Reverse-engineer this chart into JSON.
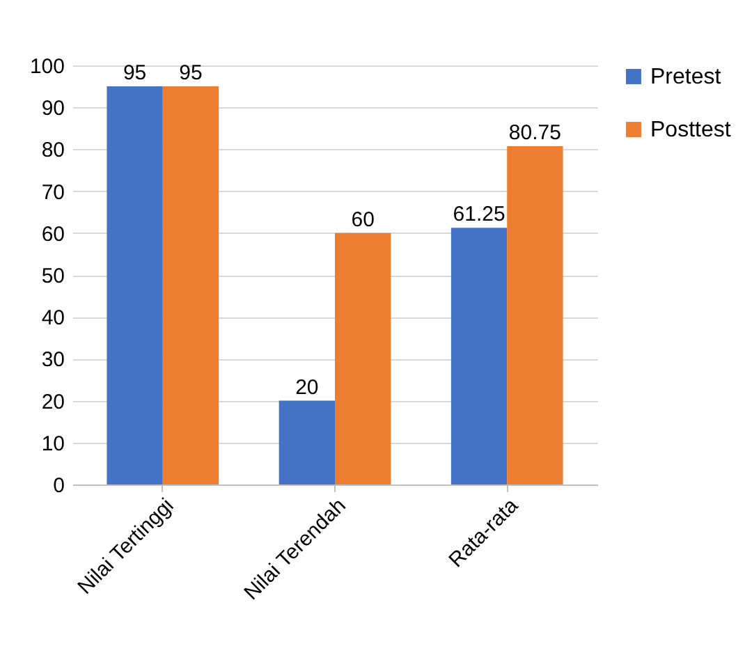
{
  "chart_data": {
    "type": "bar",
    "categories": [
      "Nilai Tertinggi",
      "Nilai Terendah",
      "Rata-rata"
    ],
    "series": [
      {
        "name": "Pretest",
        "color": "#4472c4",
        "values": [
          95,
          20,
          61.25
        ]
      },
      {
        "name": "Posttest",
        "color": "#ed7d31",
        "values": [
          95,
          60,
          80.75
        ]
      }
    ],
    "ylim": [
      0,
      100
    ],
    "yticks": [
      0,
      10,
      20,
      30,
      40,
      50,
      60,
      70,
      80,
      90,
      100
    ],
    "grid": "y",
    "legend": "right",
    "data_labels": true
  }
}
